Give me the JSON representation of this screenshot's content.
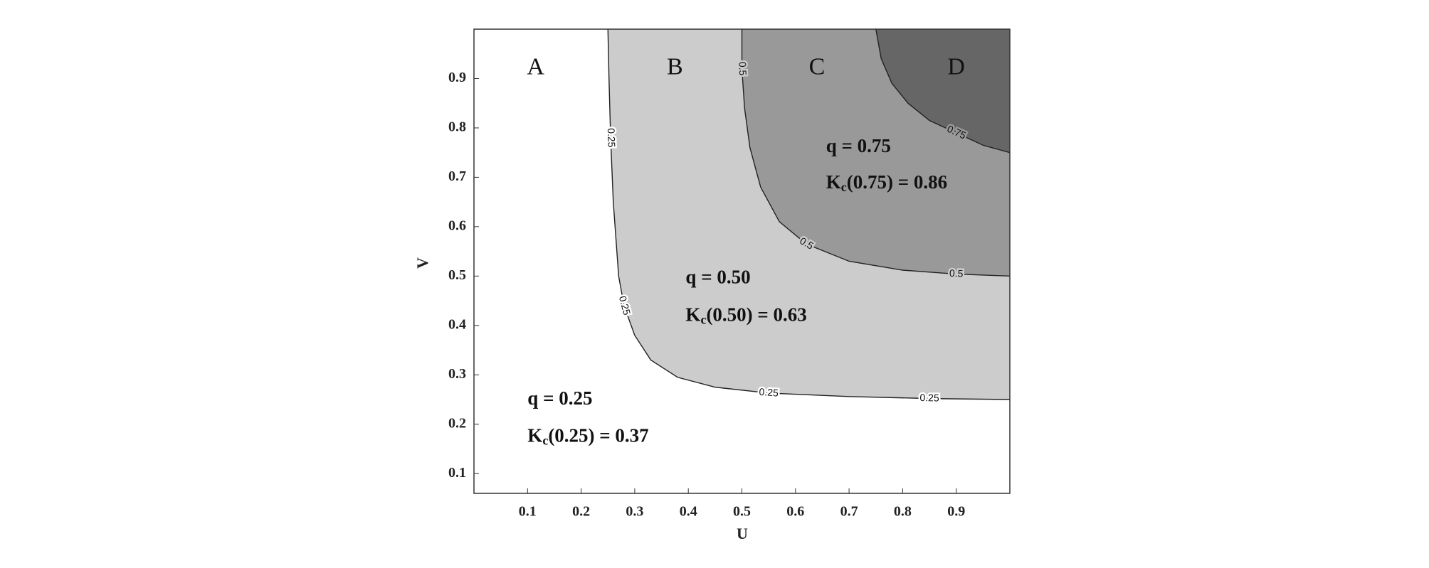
{
  "chart_data": {
    "type": "contour",
    "x_label": "U",
    "y_label": "V",
    "xlim": [
      0,
      1
    ],
    "ylim": [
      0.06,
      1
    ],
    "xticks": [
      0.1,
      0.2,
      0.3,
      0.4,
      0.5,
      0.6,
      0.7,
      0.8,
      0.9
    ],
    "yticks": [
      0.1,
      0.2,
      0.3,
      0.4,
      0.5,
      0.6,
      0.7,
      0.8,
      0.9
    ],
    "fill_colors": [
      "#ffffff",
      "#cccccc",
      "#999999",
      "#666666"
    ],
    "line_color": "#222222",
    "contours": [
      {
        "level": 0.25,
        "u": [
          0.25,
          0.252,
          0.255,
          0.26,
          0.27,
          0.28,
          0.3,
          0.33,
          0.38,
          0.45,
          0.55,
          0.7,
          0.85,
          1.0
        ],
        "v": [
          1.0,
          0.9,
          0.78,
          0.65,
          0.5,
          0.44,
          0.38,
          0.33,
          0.295,
          0.275,
          0.263,
          0.256,
          0.252,
          0.25
        ]
      },
      {
        "level": 0.5,
        "u": [
          0.5,
          0.5,
          0.505,
          0.515,
          0.535,
          0.57,
          0.62,
          0.7,
          0.8,
          0.9,
          1.0
        ],
        "v": [
          1.0,
          0.92,
          0.84,
          0.76,
          0.68,
          0.61,
          0.565,
          0.53,
          0.512,
          0.504,
          0.5
        ]
      },
      {
        "level": 0.75,
        "u": [
          0.75,
          0.76,
          0.78,
          0.81,
          0.85,
          0.9,
          0.95,
          1.0
        ],
        "v": [
          1.0,
          0.94,
          0.89,
          0.85,
          0.815,
          0.79,
          0.765,
          0.75
        ]
      }
    ],
    "regions": [
      "A",
      "B",
      "C",
      "D"
    ],
    "notes": [
      {
        "q": "q = 0.25",
        "k": "K",
        "sub": "c",
        "rest": "(0.25) = 0.37"
      },
      {
        "q": "q = 0.50",
        "k": "K",
        "sub": "c",
        "rest": "(0.50) = 0.63"
      },
      {
        "q": "q = 0.75",
        "k": "K",
        "sub": "c",
        "rest": "(0.75) = 0.86"
      }
    ]
  }
}
